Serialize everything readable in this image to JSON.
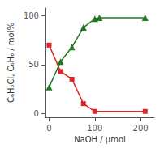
{
  "chart_data": {
    "type": "line",
    "xlabel": "NaOH / μmol",
    "ylabel": "C₆H₅Cl, C₆H₆ / mol%",
    "xlim": [
      -8,
      230
    ],
    "ylim": [
      -4,
      108
    ],
    "xticks": [
      0,
      100,
      200
    ],
    "yticks": [
      0,
      50,
      100
    ],
    "grid": false,
    "series": [
      {
        "x": [
          0,
          25,
          50,
          75,
          100,
          210
        ],
        "values": [
          70,
          43,
          35,
          10,
          2,
          2
        ],
        "color": "#dd2222",
        "marker": "square"
      },
      {
        "x": [
          0,
          25,
          50,
          75,
          100,
          110,
          210
        ],
        "values": [
          27,
          53,
          68,
          88,
          97,
          98,
          98
        ],
        "color": "#227722",
        "marker": "triangle"
      }
    ]
  }
}
